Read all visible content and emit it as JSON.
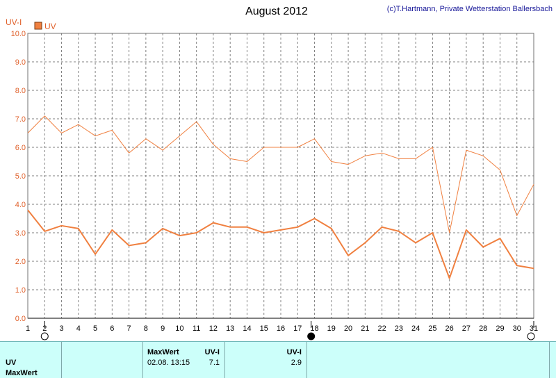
{
  "chart_data": {
    "type": "line",
    "title": "August 2012",
    "copyright": "(c)T.Hartmann, Private Wetterstation Ballersbach",
    "ylabel": "UV-I",
    "ylim": [
      0,
      10
    ],
    "yticks": [
      "0.0",
      "1.0",
      "2.0",
      "3.0",
      "4.0",
      "5.0",
      "6.0",
      "7.0",
      "8.0",
      "9.0",
      "10.0"
    ],
    "x": [
      1,
      2,
      3,
      4,
      5,
      6,
      7,
      8,
      9,
      10,
      11,
      12,
      13,
      14,
      15,
      16,
      17,
      18,
      19,
      20,
      21,
      22,
      23,
      24,
      25,
      26,
      27,
      28,
      29,
      30,
      31
    ],
    "legend": "UV",
    "series": [
      {
        "name": "UV",
        "role": "max",
        "color": "#f08040",
        "values": [
          6.5,
          7.1,
          6.5,
          6.8,
          6.4,
          6.6,
          5.8,
          6.3,
          5.9,
          6.4,
          6.9,
          6.1,
          5.6,
          5.5,
          6.0,
          6.0,
          6.0,
          6.3,
          5.5,
          5.4,
          5.7,
          5.8,
          5.6,
          5.6,
          6.0,
          3.0,
          5.9,
          5.7,
          5.2,
          3.6,
          4.7
        ]
      },
      {
        "name": "UV",
        "role": "mean",
        "color": "#f08040",
        "values": [
          3.8,
          3.05,
          3.25,
          3.15,
          2.25,
          3.1,
          2.55,
          2.65,
          3.15,
          2.9,
          3.0,
          3.35,
          3.2,
          3.2,
          3.0,
          3.1,
          3.2,
          3.5,
          3.15,
          2.2,
          2.65,
          3.2,
          3.05,
          2.65,
          3.0,
          1.4,
          3.1,
          2.5,
          2.8,
          1.85,
          1.75
        ]
      }
    ],
    "grid": true,
    "moon_phases": [
      {
        "day": 2,
        "symbol": "○"
      },
      {
        "day": 17.8,
        "symbol": "●"
      },
      {
        "day": 31,
        "symbol": "○"
      }
    ],
    "colors": {
      "line": "#f08040",
      "axis_text": "#e0602a",
      "grid": "#808080"
    }
  },
  "panel": {
    "row_label_1": "UV",
    "row_label_2": "MaxWert",
    "col_maxwert_header": "MaxWert",
    "col_uvi_header": "UV-I",
    "max_datetime": "02.08.  13:15",
    "max_value": "7.1",
    "avg_header": "UV-I",
    "avg_value": "2.9",
    "background": "#ccfffa"
  }
}
